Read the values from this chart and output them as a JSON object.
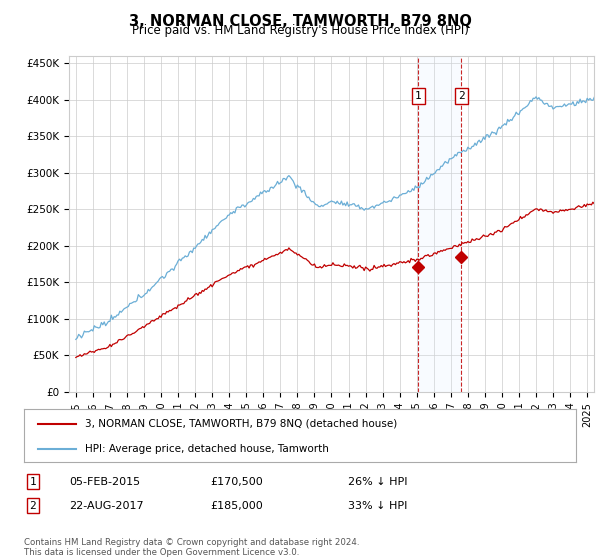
{
  "title": "3, NORMAN CLOSE, TAMWORTH, B79 8NQ",
  "subtitle": "Price paid vs. HM Land Registry's House Price Index (HPI)",
  "footer": "Contains HM Land Registry data © Crown copyright and database right 2024.\nThis data is licensed under the Open Government Licence v3.0.",
  "legend_line1": "3, NORMAN CLOSE, TAMWORTH, B79 8NQ (detached house)",
  "legend_line2": "HPI: Average price, detached house, Tamworth",
  "sale1_label": "1",
  "sale1_date": "05-FEB-2015",
  "sale1_price": "£170,500",
  "sale1_hpi": "26% ↓ HPI",
  "sale2_label": "2",
  "sale2_date": "22-AUG-2017",
  "sale2_price": "£185,000",
  "sale2_hpi": "33% ↓ HPI",
  "ylim_min": 0,
  "ylim_max": 460000,
  "xlim_min": 1994.6,
  "xlim_max": 2025.4,
  "hpi_color": "#6baed6",
  "price_color": "#c00000",
  "shade_color": "#ddeeff",
  "grid_color": "#cccccc",
  "background_color": "#ffffff",
  "sale1_year": 2015.09,
  "sale2_year": 2017.62,
  "sale1_price_val": 170500,
  "sale2_price_val": 185000
}
